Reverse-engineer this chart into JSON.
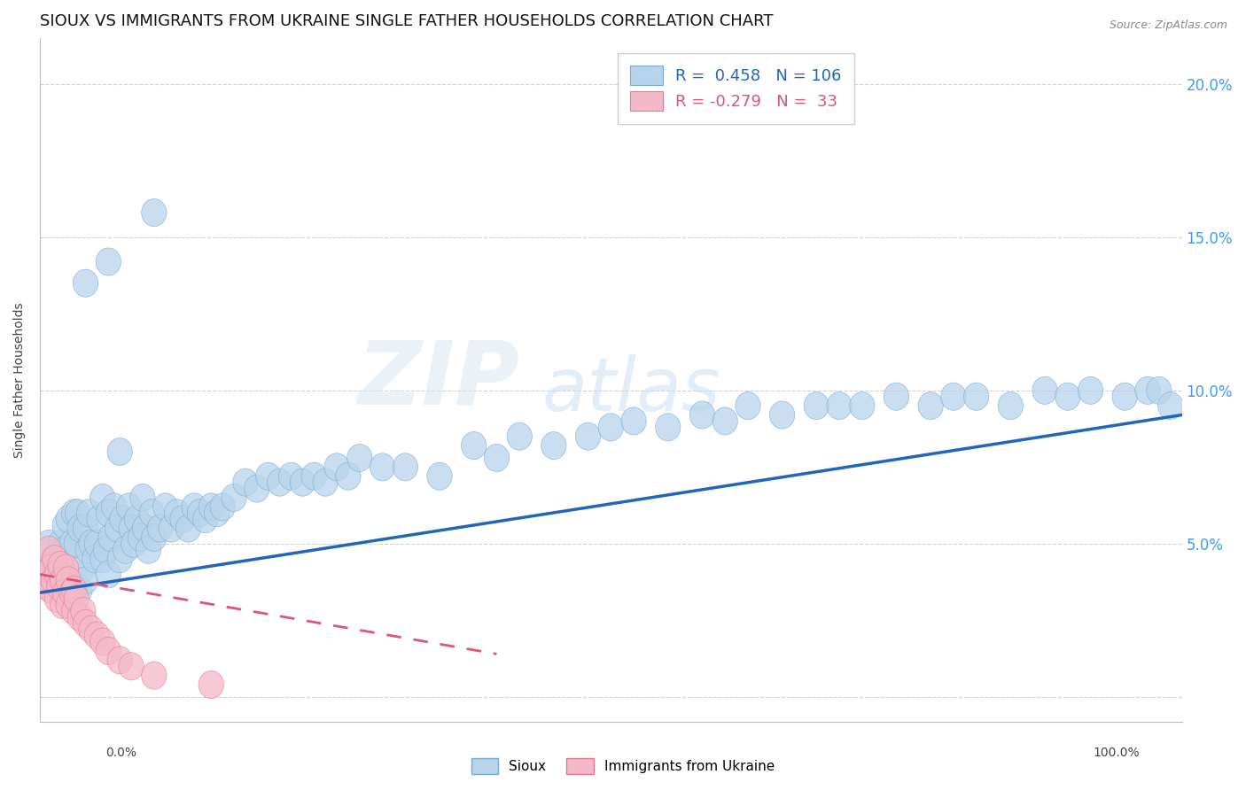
{
  "title": "SIOUX VS IMMIGRANTS FROM UKRAINE SINGLE FATHER HOUSEHOLDS CORRELATION CHART",
  "source": "Source: ZipAtlas.com",
  "ylabel": "Single Father Households",
  "xlim": [
    0.0,
    1.0
  ],
  "ylim": [
    -0.008,
    0.215
  ],
  "watermark_zip": "ZIP",
  "watermark_atlas": "atlas",
  "sioux_color": "#b8d4eb",
  "ukraine_color": "#f5b8c8",
  "sioux_edge_color": "#7aaad0",
  "ukraine_edge_color": "#e07898",
  "sioux_line_color": "#2266bb",
  "ukraine_line_color": "#dd5577",
  "sioux_R": 0.458,
  "sioux_N": 106,
  "ukraine_R": -0.279,
  "ukraine_N": 33,
  "sioux_line": [
    0.0,
    0.034,
    1.0,
    0.092
  ],
  "ukraine_line": [
    0.0,
    0.04,
    0.4,
    0.014
  ],
  "sioux_x": [
    0.005,
    0.008,
    0.01,
    0.012,
    0.015,
    0.018,
    0.02,
    0.022,
    0.022,
    0.025,
    0.025,
    0.028,
    0.03,
    0.03,
    0.032,
    0.033,
    0.035,
    0.035,
    0.038,
    0.04,
    0.04,
    0.042,
    0.043,
    0.045,
    0.048,
    0.05,
    0.052,
    0.055,
    0.055,
    0.058,
    0.06,
    0.06,
    0.062,
    0.065,
    0.068,
    0.07,
    0.072,
    0.075,
    0.078,
    0.08,
    0.082,
    0.085,
    0.088,
    0.09,
    0.092,
    0.095,
    0.098,
    0.1,
    0.105,
    0.11,
    0.115,
    0.12,
    0.125,
    0.13,
    0.135,
    0.14,
    0.145,
    0.15,
    0.155,
    0.16,
    0.17,
    0.18,
    0.19,
    0.2,
    0.21,
    0.22,
    0.23,
    0.24,
    0.25,
    0.26,
    0.27,
    0.28,
    0.3,
    0.32,
    0.35,
    0.38,
    0.4,
    0.42,
    0.45,
    0.48,
    0.5,
    0.52,
    0.55,
    0.58,
    0.6,
    0.62,
    0.65,
    0.68,
    0.7,
    0.72,
    0.75,
    0.78,
    0.8,
    0.82,
    0.85,
    0.88,
    0.9,
    0.92,
    0.95,
    0.97,
    0.98,
    0.99,
    0.04,
    0.06,
    0.07,
    0.1
  ],
  "sioux_y": [
    0.04,
    0.05,
    0.038,
    0.045,
    0.04,
    0.05,
    0.042,
    0.048,
    0.056,
    0.038,
    0.058,
    0.05,
    0.04,
    0.06,
    0.05,
    0.06,
    0.035,
    0.055,
    0.042,
    0.038,
    0.055,
    0.048,
    0.06,
    0.05,
    0.045,
    0.05,
    0.058,
    0.045,
    0.065,
    0.048,
    0.04,
    0.06,
    0.052,
    0.062,
    0.055,
    0.045,
    0.058,
    0.048,
    0.062,
    0.055,
    0.05,
    0.058,
    0.052,
    0.065,
    0.055,
    0.048,
    0.06,
    0.052,
    0.055,
    0.062,
    0.055,
    0.06,
    0.058,
    0.055,
    0.062,
    0.06,
    0.058,
    0.062,
    0.06,
    0.062,
    0.065,
    0.07,
    0.068,
    0.072,
    0.07,
    0.072,
    0.07,
    0.072,
    0.07,
    0.075,
    0.072,
    0.078,
    0.075,
    0.075,
    0.072,
    0.082,
    0.078,
    0.085,
    0.082,
    0.085,
    0.088,
    0.09,
    0.088,
    0.092,
    0.09,
    0.095,
    0.092,
    0.095,
    0.095,
    0.095,
    0.098,
    0.095,
    0.098,
    0.098,
    0.095,
    0.1,
    0.098,
    0.1,
    0.098,
    0.1,
    0.1,
    0.095,
    0.135,
    0.142,
    0.08,
    0.158
  ],
  "ukraine_x": [
    0.003,
    0.005,
    0.007,
    0.008,
    0.01,
    0.01,
    0.012,
    0.013,
    0.015,
    0.015,
    0.017,
    0.018,
    0.02,
    0.02,
    0.022,
    0.023,
    0.025,
    0.025,
    0.028,
    0.03,
    0.03,
    0.032,
    0.035,
    0.038,
    0.04,
    0.045,
    0.05,
    0.055,
    0.06,
    0.07,
    0.08,
    0.1,
    0.15
  ],
  "ukraine_y": [
    0.038,
    0.042,
    0.036,
    0.048,
    0.035,
    0.042,
    0.038,
    0.045,
    0.032,
    0.04,
    0.036,
    0.043,
    0.03,
    0.038,
    0.034,
    0.042,
    0.03,
    0.038,
    0.034,
    0.028,
    0.035,
    0.032,
    0.026,
    0.028,
    0.024,
    0.022,
    0.02,
    0.018,
    0.015,
    0.012,
    0.01,
    0.007,
    0.004
  ],
  "bg_color": "#ffffff",
  "grid_color": "#cccccc",
  "ytick_color": "#4499ee",
  "title_fontsize": 13,
  "label_fontsize": 10,
  "legend_fontsize": 13,
  "ytick_vals": [
    0.0,
    0.05,
    0.1,
    0.15,
    0.2
  ],
  "ytick_labels": [
    "",
    "5.0%",
    "10.0%",
    "15.0%",
    "20.0%"
  ]
}
